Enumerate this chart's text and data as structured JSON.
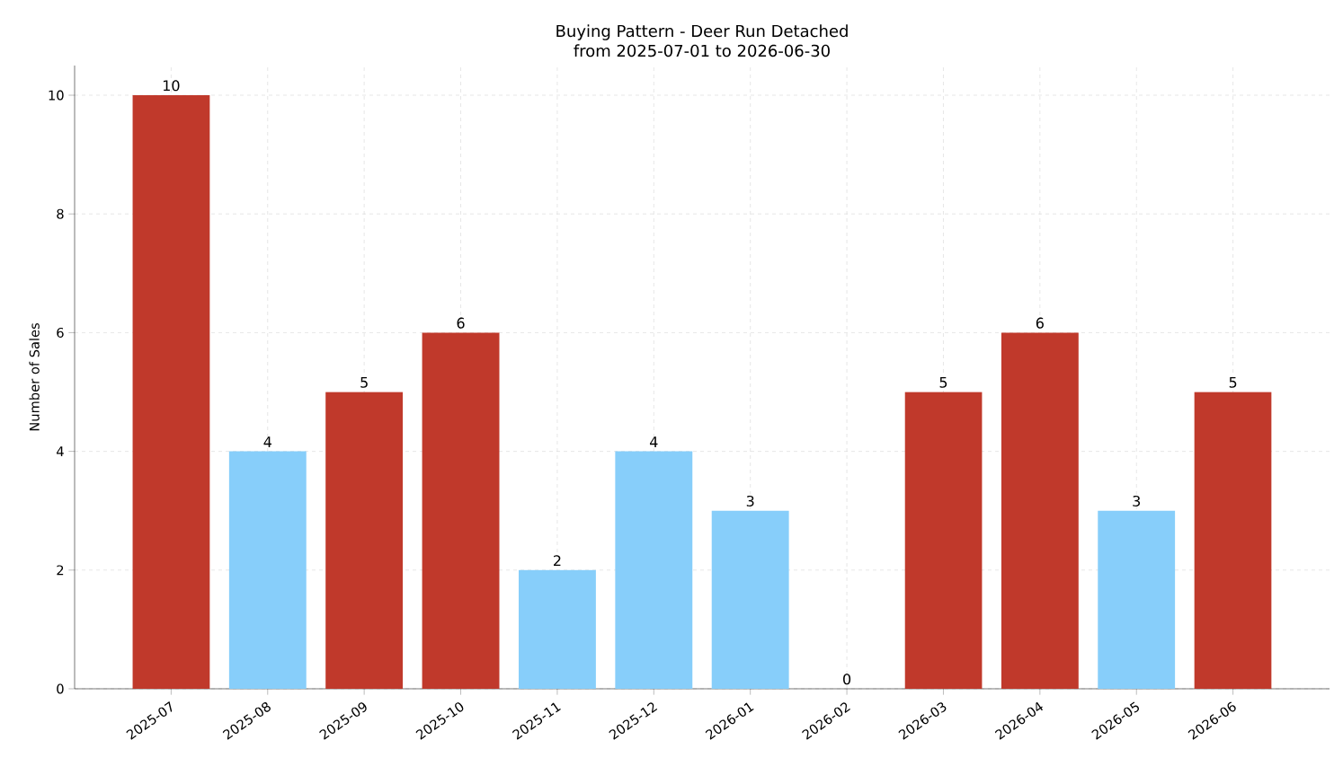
{
  "chart_data": {
    "type": "bar",
    "title": "Buying Pattern - Deer Run Detached",
    "subtitle": "from 2025-07-01 to 2026-06-30",
    "ylabel": "Number of Sales",
    "categories": [
      "2025-07",
      "2025-08",
      "2025-09",
      "2025-10",
      "2025-11",
      "2025-12",
      "2026-01",
      "2026-02",
      "2026-03",
      "2026-04",
      "2026-05",
      "2026-06"
    ],
    "values": [
      10,
      4,
      5,
      6,
      2,
      4,
      3,
      0,
      5,
      6,
      3,
      5
    ],
    "colors": [
      "#c0392b",
      "#87cefa",
      "#c0392b",
      "#c0392b",
      "#87cefa",
      "#87cefa",
      "#87cefa",
      "#87cefa",
      "#c0392b",
      "#c0392b",
      "#87cefa",
      "#c0392b"
    ],
    "ylim": [
      0,
      10.5
    ],
    "yticks": [
      0,
      2,
      4,
      6,
      8,
      10
    ],
    "grid": true,
    "data_labels": true
  }
}
